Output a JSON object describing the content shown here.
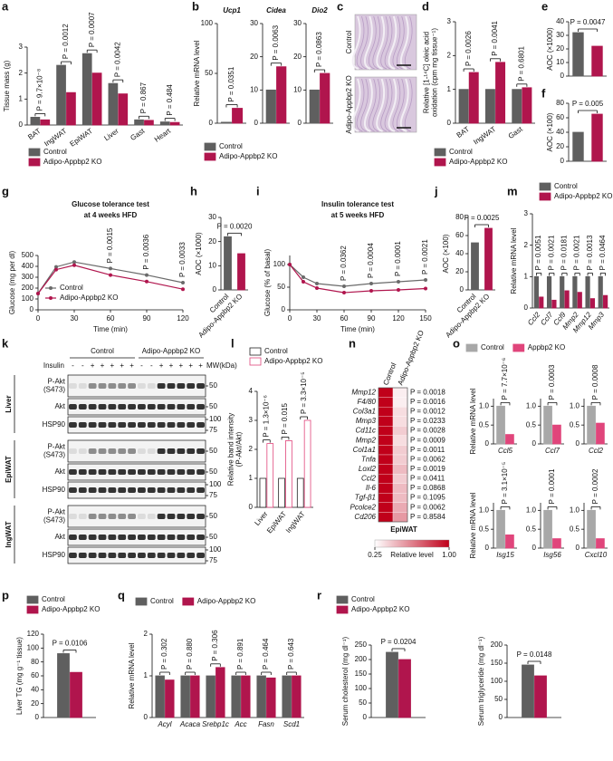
{
  "chart_data": [
    {
      "type": "bar",
      "label": "a",
      "ylabel": "Tissue mass (g)",
      "categories": [
        "BAT",
        "IngWAT",
        "EpiWAT",
        "Liver",
        "Gast",
        "Heart"
      ],
      "series": [
        {
          "name": "Control",
          "color": "#5f5f5f",
          "values": [
            0.3,
            2.3,
            2.75,
            1.6,
            0.2,
            0.12
          ]
        },
        {
          "name": "Adipo-Appbp2 KO",
          "color": "#b0154d",
          "values": [
            0.2,
            1.25,
            2.0,
            1.2,
            0.18,
            0.1
          ]
        }
      ],
      "ylim": [
        0,
        3
      ],
      "yticks": [
        0,
        1,
        2,
        3
      ],
      "annotations": [
        "P = 9.7×10⁻⁸",
        "P = 0.0012",
        "P = 0.0007",
        "P = 0.0042",
        "P = 0.867",
        "P = 0.484"
      ],
      "legend": "bottom"
    },
    {
      "type": "bar",
      "label": "b",
      "title": "Ucp1",
      "ylabel": "Relative mRNA level",
      "series": [
        {
          "name": "Control",
          "color": "#5f5f5f",
          "values": [
            1
          ]
        },
        {
          "name": "Adipo-Appbp2 KO",
          "color": "#b0154d",
          "values": [
            15
          ]
        }
      ],
      "ylim": [
        0,
        100
      ],
      "yticks": [
        0,
        50,
        100
      ],
      "annotation": "P = 0.0351",
      "legend": "bottom"
    },
    {
      "type": "bar",
      "title": "Cidea",
      "series": [
        {
          "color": "#5f5f5f",
          "values": [
            10
          ]
        },
        {
          "color": "#b0154d",
          "values": [
            17
          ]
        }
      ],
      "ylim": [
        0,
        30
      ],
      "yticks": [
        0,
        10,
        20,
        30
      ],
      "annotation": "P = 0.0063"
    },
    {
      "type": "bar",
      "title": "Dio2",
      "series": [
        {
          "color": "#5f5f5f",
          "values": [
            10
          ]
        },
        {
          "color": "#b0154d",
          "values": [
            15
          ]
        }
      ],
      "ylim": [
        0,
        30
      ],
      "yticks": [
        0,
        10,
        20,
        30
      ],
      "annotation": "P = 0.0863"
    },
    {
      "type": "image",
      "label": "c",
      "rows": [
        "Control",
        "Adipo-Appbp2 KO"
      ]
    },
    {
      "type": "bar",
      "label": "d",
      "ylabel": [
        "Relative [1-¹⁴C] oleic acid",
        "oxidation (cpm mg tissue⁻¹)"
      ],
      "categories": [
        "BAT",
        "IngWAT",
        "Gast"
      ],
      "series": [
        {
          "name": "Control",
          "color": "#5f5f5f",
          "values": [
            1.0,
            1.0,
            1.0
          ]
        },
        {
          "name": "Adipo-Appbp2 KO",
          "color": "#b0154d",
          "values": [
            1.5,
            1.8,
            1.05
          ]
        }
      ],
      "ylim": [
        0,
        3
      ],
      "yticks": [
        0,
        1,
        2,
        3
      ],
      "annotations": [
        "P = 0.0026",
        "P = 0.0041",
        "P = 0.6801"
      ],
      "legend": "bottom"
    },
    {
      "type": "bar",
      "label": "e",
      "ylabel": "AOC (×1000)",
      "values": [
        32,
        22
      ],
      "colors": [
        "#5f5f5f",
        "#b0154d"
      ],
      "ylim": [
        0,
        40
      ],
      "yticks": [
        0,
        10,
        20,
        30,
        40
      ],
      "annotation": "P = 0.0047"
    },
    {
      "type": "bar",
      "label": "f",
      "ylabel": "AOC (×100)",
      "values": [
        40,
        65
      ],
      "colors": [
        "#5f5f5f",
        "#b0154d"
      ],
      "ylim": [
        0,
        80
      ],
      "yticks": [
        0,
        20,
        40,
        60,
        80
      ],
      "annotation": "P = 0.005"
    },
    {
      "type": "line",
      "label": "g",
      "title": [
        "Glucose tolerance test",
        "at 4 weeks HFD"
      ],
      "ylabel": "Glucose (mg per dl)",
      "xlabel": "Time (min)",
      "x": [
        0,
        15,
        30,
        60,
        90,
        120
      ],
      "series": [
        {
          "name": "Control",
          "color": "#6a6a6a",
          "values": [
            150,
            395,
            440,
            380,
            320,
            250
          ]
        },
        {
          "name": "Adipo-Appbp2 KO",
          "color": "#b0154d",
          "values": [
            150,
            370,
            410,
            320,
            260,
            190
          ]
        }
      ],
      "xlim": [
        0,
        120
      ],
      "xticks": [
        0,
        30,
        60,
        90,
        120
      ],
      "ylim": [
        0,
        500
      ],
      "yticks": [
        0,
        100,
        200,
        300,
        400,
        500
      ],
      "annotations": [
        {
          "x": 60,
          "text": "P = 0.0015"
        },
        {
          "x": 90,
          "text": "P = 0.0036"
        },
        {
          "x": 120,
          "text": "P = 0.0033"
        }
      ],
      "legend": "lower left"
    },
    {
      "type": "bar",
      "label": "h",
      "ylabel": "AOC (×1000)",
      "categories": [
        "Control",
        "Adipo-Appbp2 KO"
      ],
      "values": [
        22,
        15
      ],
      "colors": [
        "#5f5f5f",
        "#b0154d"
      ],
      "ylim": [
        0,
        30
      ],
      "yticks": [
        0,
        10,
        20,
        30
      ],
      "annotation": "P = 0.0020"
    },
    {
      "type": "line",
      "label": "i",
      "title": [
        "Insulin tolerance test",
        "at 5 weeks HFD"
      ],
      "ylabel": "Glucose (% of basal)",
      "xlabel": "Time (min)",
      "x": [
        0,
        15,
        30,
        60,
        90,
        120,
        150
      ],
      "series": [
        {
          "color": "#6a6a6a",
          "values": [
            100,
            72,
            58,
            52,
            58,
            62,
            66
          ]
        },
        {
          "color": "#b0154d",
          "values": [
            100,
            62,
            48,
            38,
            42,
            44,
            47
          ]
        }
      ],
      "xlim": [
        0,
        150
      ],
      "xticks": [
        0,
        30,
        60,
        90,
        120,
        150
      ],
      "ylim": [
        0,
        120
      ],
      "yticks": [
        0,
        50,
        100
      ],
      "annotations": [
        {
          "x": 60,
          "text": "P = 0.0362"
        },
        {
          "x": 90,
          "text": "P = 0.0004"
        },
        {
          "x": 120,
          "text": "P = 0.0001"
        },
        {
          "x": 150,
          "text": "P = 0.0021"
        }
      ]
    },
    {
      "type": "bar",
      "label": "j",
      "ylabel": "AOC (×100)",
      "categories": [
        "Control",
        "Adipo-Appbp2 KO"
      ],
      "values": [
        52,
        68
      ],
      "colors": [
        "#5f5f5f",
        "#b0154d"
      ],
      "ylim": [
        0,
        80
      ],
      "yticks": [
        0,
        20,
        40,
        60,
        80
      ],
      "annotation": "P = 0.0025"
    },
    {
      "type": "bar",
      "label": "m",
      "ylabel": "Relative mRNA level",
      "categories": [
        "Ccl2",
        "Ccl7",
        "Ccl9",
        "Mmp2",
        "Mmp12",
        "Mmp3"
      ],
      "series": [
        {
          "name": "Control",
          "color": "#5f5f5f",
          "values": [
            1.0,
            1.0,
            1.0,
            1.0,
            1.0,
            1.0
          ]
        },
        {
          "name": "Adipo-Appbp2 KO",
          "color": "#b0154d",
          "values": [
            0.35,
            0.25,
            0.55,
            0.5,
            0.3,
            0.4
          ]
        }
      ],
      "ylim": [
        0,
        3
      ],
      "yticks": [
        0,
        1,
        2,
        3
      ],
      "annotations": [
        "P = 0.0051",
        "P = 0.0021",
        "P = 0.0181",
        "P = 0.0021",
        "P = 0.0013",
        "P = 0.0464"
      ],
      "legend": "top"
    },
    {
      "type": "blot",
      "label": "k",
      "columns": [
        "Control",
        "Adipo-Appbp2 KO"
      ],
      "treatment_label": "Insulin",
      "treatment": [
        "-",
        "-",
        "+",
        "+",
        "+",
        "+",
        "+",
        "-",
        "-",
        "+",
        "+",
        "+",
        "+",
        "+"
      ],
      "mw_label": "MW(kDa)",
      "tissues": [
        {
          "name": "Liver",
          "rows": [
            {
              "label": [
                "P-Akt",
                "(S473)"
              ],
              "mw": [
                50
              ]
            },
            {
              "label": [
                "Akt"
              ],
              "mw": [
                50
              ]
            },
            {
              "label": [
                "HSP90"
              ],
              "mw": [
                100,
                75
              ]
            }
          ]
        },
        {
          "name": "EpiWAT",
          "rows": [
            {
              "label": [
                "P-Akt",
                "(S473)"
              ],
              "mw": [
                50
              ]
            },
            {
              "label": [
                "Akt"
              ],
              "mw": [
                50
              ]
            },
            {
              "label": [
                "HSP90"
              ],
              "mw": [
                100,
                75
              ]
            }
          ]
        },
        {
          "name": "IngWAT",
          "rows": [
            {
              "label": [
                "P-Akt",
                "(S473)"
              ],
              "mw": [
                50
              ]
            },
            {
              "label": [
                "Akt"
              ],
              "mw": [
                50
              ]
            },
            {
              "label": [
                "HSP90"
              ],
              "mw": [
                100,
                75
              ]
            }
          ]
        }
      ]
    },
    {
      "type": "bar",
      "label": "l",
      "ylabel": [
        "Relative band intensity",
        "(P-Akt/Akt)"
      ],
      "categories": [
        "Liver",
        "EpiWAT",
        "IngWAT"
      ],
      "series": [
        {
          "name": "Control",
          "color": "#222222",
          "fill": "#ffffff",
          "values": [
            1.0,
            1.0,
            1.0
          ]
        },
        {
          "name": "Adipo-Appbp2 KO",
          "color": "#e0457b",
          "fill": "#ffffff",
          "values": [
            2.2,
            2.3,
            3.0
          ]
        }
      ],
      "ylim": [
        0,
        4
      ],
      "yticks": [
        0,
        1,
        2,
        3,
        4
      ],
      "annotations": [
        "P = 1.3×10⁻⁶",
        "P = 0.015",
        "P = 3.3×10⁻⁵"
      ],
      "legend": "top"
    },
    {
      "type": "heatmap",
      "label": "n",
      "columns": [
        "Control",
        "Adipo-Appbp2 KO"
      ],
      "rows": [
        "Mmp12",
        "F4/80",
        "Col3a1",
        "Mmp3",
        "Cd11c",
        "Mmp2",
        "Col1a1",
        "Tnfa",
        "Loxl2",
        "Ccl2",
        "Il-6",
        "Tgf-β1",
        "Pcolce2",
        "Cd206"
      ],
      "values": [
        [
          1,
          0.3
        ],
        [
          1,
          0.3
        ],
        [
          1,
          0.35
        ],
        [
          1,
          0.35
        ],
        [
          1,
          0.4
        ],
        [
          1,
          0.35
        ],
        [
          1,
          0.4
        ],
        [
          1,
          0.4
        ],
        [
          1,
          0.45
        ],
        [
          1,
          0.4
        ],
        [
          1,
          0.45
        ],
        [
          1,
          0.45
        ],
        [
          1,
          0.5
        ],
        [
          1,
          0.55
        ]
      ],
      "annotations": [
        "P = 0.0018",
        "P = 0.0016",
        "P = 0.0012",
        "P = 0.0233",
        "P = 0.0028",
        "P = 0.0009",
        "P = 0.0011",
        "P = 0.0062",
        "P = 0.0019",
        "P = 0.0411",
        "P = 0.0868",
        "P = 0.1095",
        "P = 0.0062",
        "P = 0.8584"
      ],
      "xlabel": "EpiWAT",
      "cmap": [
        "#ffffff",
        "#c0001a"
      ],
      "clim": [
        0.25,
        1
      ],
      "cticks": [
        0.25,
        {
          "value": 1,
          "label": "1.00"
        }
      ],
      "clabel": "Relative level"
    },
    {
      "type": "bar",
      "label": "o",
      "ylabel": "Relative mRNA level",
      "categories": [
        "Ccl5"
      ],
      "series": [
        {
          "name": "Control",
          "color": "#a8a8a8",
          "values": [
            1.0
          ]
        },
        {
          "name": "Appbp2 KO",
          "color": "#e0457b",
          "values": [
            0.25
          ]
        }
      ],
      "ylim": [
        0,
        1.2
      ],
      "yticks": [
        0,
        0.5,
        {
          "value": 1,
          "label": "1.0"
        }
      ],
      "annotation": "P = 7.7×10⁻⁶",
      "legend": "top"
    },
    {
      "type": "bar",
      "categories": [
        "Ccl7"
      ],
      "series": [
        {
          "color": "#a8a8a8",
          "values": [
            1.0
          ]
        },
        {
          "color": "#e0457b",
          "values": [
            0.5
          ]
        }
      ],
      "ylim": [
        0,
        1.2
      ],
      "yticks": [
        0,
        0.5,
        {
          "value": 1,
          "label": "1.0"
        }
      ],
      "annotation": "P = 0.0003"
    },
    {
      "type": "bar",
      "categories": [
        "Ccl2"
      ],
      "series": [
        {
          "color": "#a8a8a8",
          "values": [
            1.0
          ]
        },
        {
          "color": "#e0457b",
          "values": [
            0.55
          ]
        }
      ],
      "ylim": [
        0,
        1.2
      ],
      "yticks": [
        0,
        0.5,
        {
          "value": 1,
          "label": "1.0"
        }
      ],
      "annotation": "P = 0.0008"
    },
    {
      "type": "bar",
      "ylabel": "Relative mRNA level",
      "categories": [
        "Isg15"
      ],
      "series": [
        {
          "color": "#a8a8a8",
          "values": [
            1.0
          ]
        },
        {
          "color": "#e0457b",
          "values": [
            0.35
          ]
        }
      ],
      "ylim": [
        0,
        1.2
      ],
      "yticks": [
        0,
        0.5,
        {
          "value": 1,
          "label": "1.0"
        }
      ],
      "annotation": "P = 3.1×10⁻⁵"
    },
    {
      "type": "bar",
      "categories": [
        "Isg56"
      ],
      "series": [
        {
          "color": "#a8a8a8",
          "values": [
            1.0
          ]
        },
        {
          "color": "#e0457b",
          "values": [
            0.25
          ]
        }
      ],
      "ylim": [
        0,
        1.2
      ],
      "yticks": [
        0,
        0.5,
        {
          "value": 1,
          "label": "1.0"
        }
      ],
      "annotation": "P = 0.0001"
    },
    {
      "type": "bar",
      "categories": [
        "Cxcl10"
      ],
      "series": [
        {
          "color": "#a8a8a8",
          "values": [
            1.0
          ]
        },
        {
          "color": "#e0457b",
          "values": [
            0.25
          ]
        }
      ],
      "ylim": [
        0,
        1.2
      ],
      "yticks": [
        0,
        0.5,
        {
          "value": 1,
          "label": "1.0"
        }
      ],
      "annotation": "P = 0.0002"
    },
    {
      "type": "bar",
      "label": "p",
      "ylabel": "Liver TG (mg g⁻¹ tissue)",
      "series": [
        {
          "name": "Control",
          "color": "#5f5f5f",
          "values": [
            92
          ]
        },
        {
          "name": "Adipo-Appbp2 KO",
          "color": "#b0154d",
          "values": [
            65
          ]
        }
      ],
      "ylim": [
        0,
        120
      ],
      "yticks": [
        0,
        20,
        40,
        60,
        80,
        100,
        120
      ],
      "annotation": "P = 0.0106",
      "legend": "top"
    },
    {
      "type": "bar",
      "label": "q",
      "ylabel": "Relative mRNA level",
      "categories": [
        "Acyl",
        "Acaca",
        "Srebp1c",
        "Acc",
        "Fasn",
        "Scd1"
      ],
      "series": [
        {
          "name": "Control",
          "color": "#5f5f5f",
          "values": [
            1.0,
            1.0,
            1.0,
            1.0,
            1.0,
            1.0
          ]
        },
        {
          "name": "Adipo-Appbp2 KO",
          "color": "#b0154d",
          "values": [
            0.9,
            1.0,
            1.2,
            1.0,
            0.95,
            1.0
          ]
        }
      ],
      "ylim": [
        0,
        2
      ],
      "yticks": [
        0,
        1,
        2
      ],
      "annotations": [
        "P = 0.302",
        "P = 0.880",
        "P = 0.306",
        "P = 0.891",
        "P = 0.464",
        "P = 0.643"
      ],
      "legend": "top"
    },
    {
      "type": "bar",
      "label": "r",
      "ylabel": "Serum cholesterol (mg dl⁻¹)",
      "series": [
        {
          "name": "Control",
          "color": "#5f5f5f",
          "values": [
            225
          ]
        },
        {
          "name": "Adipo-Appbp2 KO",
          "color": "#b0154d",
          "values": [
            200
          ]
        }
      ],
      "ylim": [
        0,
        250
      ],
      "yticks": [
        0,
        50,
        100,
        150,
        200,
        250
      ],
      "annotation": "P = 0.0204",
      "legend": "top"
    },
    {
      "type": "bar",
      "ylabel": "Serum triglyceride (mg dl⁻¹)",
      "series": [
        {
          "color": "#5f5f5f",
          "values": [
            145
          ]
        },
        {
          "color": "#b0154d",
          "values": [
            115
          ]
        }
      ],
      "ylim": [
        0,
        200
      ],
      "yticks": [
        0,
        50,
        100,
        150,
        200
      ],
      "annotation": "P = 0.0148"
    }
  ]
}
